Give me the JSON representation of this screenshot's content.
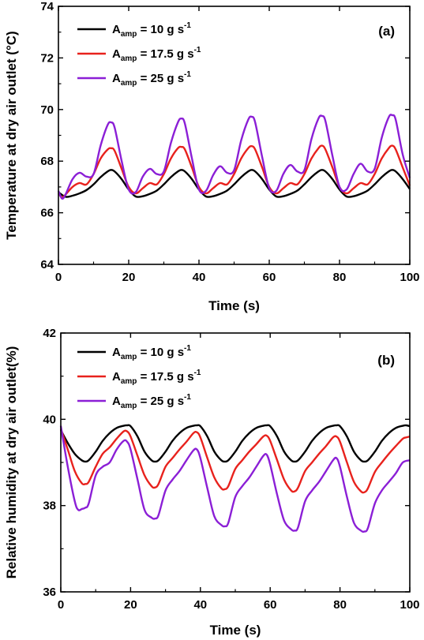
{
  "chart_data": [
    {
      "type": "line",
      "panel_label": "(a)",
      "xlabel": "Time (s)",
      "ylabel": "Temperature at dry air outlet (°C)",
      "xlim": [
        0,
        100
      ],
      "ylim": [
        64,
        74
      ],
      "xticks": [
        "0",
        "20",
        "40",
        "60",
        "80",
        "100"
      ],
      "yticks": [
        "64",
        "66",
        "68",
        "70",
        "72",
        "74"
      ],
      "grid": false,
      "legend_position": "top-left",
      "series": [
        {
          "name": "10 g s",
          "legend_prefix": "A",
          "legend_sub": "amp",
          "legend_eq": " = ",
          "legend_value": "10 g s",
          "legend_sup": "-1",
          "color": "#000000",
          "x": [
            0,
            2,
            4,
            6,
            8,
            10,
            12,
            14,
            15,
            16,
            18,
            20,
            22,
            24,
            26,
            28,
            30,
            32,
            34,
            35,
            36,
            38,
            40,
            42,
            44,
            46,
            48,
            50,
            52,
            54,
            55,
            56,
            58,
            60,
            62,
            64,
            66,
            68,
            70,
            72,
            74,
            75,
            76,
            78,
            80,
            82,
            84,
            86,
            88,
            90,
            92,
            94,
            95,
            96,
            98,
            100
          ],
          "y": [
            66.8,
            66.62,
            66.66,
            66.75,
            66.88,
            67.1,
            67.38,
            67.6,
            67.66,
            67.6,
            67.3,
            66.9,
            66.63,
            66.64,
            66.73,
            66.86,
            67.1,
            67.38,
            67.6,
            67.66,
            67.6,
            67.3,
            66.9,
            66.63,
            66.64,
            66.73,
            66.86,
            67.1,
            67.38,
            67.6,
            67.66,
            67.6,
            67.3,
            66.9,
            66.63,
            66.64,
            66.73,
            66.86,
            67.1,
            67.38,
            67.6,
            67.66,
            67.6,
            67.3,
            66.9,
            66.63,
            66.64,
            66.73,
            66.86,
            67.1,
            67.38,
            67.6,
            67.66,
            67.6,
            67.3,
            66.92
          ]
        },
        {
          "name": "17.5 g s",
          "legend_prefix": "A",
          "legend_sub": "amp",
          "legend_eq": " = ",
          "legend_value": "17.5 g s",
          "legend_sup": "-1",
          "color": "#e8221d",
          "x": [
            0,
            1,
            2,
            4,
            6,
            8,
            10,
            12,
            14,
            15,
            16,
            18,
            20,
            22,
            24,
            26,
            28,
            30,
            32,
            34,
            35,
            36,
            38,
            40,
            42,
            44,
            46,
            48,
            50,
            52,
            54,
            55,
            56,
            58,
            60,
            62,
            64,
            66,
            68,
            70,
            72,
            74,
            75,
            76,
            78,
            80,
            82,
            84,
            86,
            88,
            90,
            92,
            94,
            95,
            96,
            98,
            100
          ],
          "y": [
            66.75,
            66.6,
            66.7,
            67.0,
            67.15,
            67.1,
            67.5,
            68.1,
            68.45,
            68.5,
            68.4,
            67.7,
            67.0,
            66.75,
            66.95,
            67.15,
            67.1,
            67.5,
            68.1,
            68.5,
            68.55,
            68.45,
            67.75,
            67.0,
            66.75,
            66.95,
            67.15,
            67.1,
            67.5,
            68.1,
            68.5,
            68.58,
            68.45,
            67.75,
            67.0,
            66.75,
            66.95,
            67.15,
            67.1,
            67.5,
            68.1,
            68.5,
            68.6,
            68.45,
            67.75,
            67.0,
            66.75,
            66.95,
            67.15,
            67.1,
            67.5,
            68.1,
            68.5,
            68.6,
            68.45,
            67.75,
            67.05
          ]
        },
        {
          "name": "25 g s",
          "legend_prefix": "A",
          "legend_sub": "amp",
          "legend_eq": " = ",
          "legend_value": "25 g s",
          "legend_sup": "-1",
          "color": "#8b1fd6",
          "x": [
            0,
            1,
            2,
            4,
            6,
            8,
            10,
            12,
            14,
            15,
            16,
            18,
            20,
            22,
            24,
            26,
            28,
            30,
            32,
            34,
            35,
            36,
            38,
            40,
            42,
            44,
            46,
            48,
            50,
            52,
            54,
            55,
            56,
            58,
            60,
            62,
            64,
            66,
            68,
            70,
            72,
            74,
            75,
            76,
            78,
            80,
            82,
            84,
            86,
            88,
            90,
            92,
            94,
            95,
            96,
            98,
            100
          ],
          "y": [
            66.85,
            66.55,
            66.7,
            67.3,
            67.55,
            67.4,
            67.5,
            68.6,
            69.4,
            69.5,
            69.3,
            68.0,
            66.9,
            66.8,
            67.4,
            67.7,
            67.5,
            67.6,
            68.7,
            69.5,
            69.65,
            69.45,
            68.1,
            66.9,
            66.85,
            67.45,
            67.8,
            67.55,
            67.65,
            68.8,
            69.6,
            69.72,
            69.5,
            68.15,
            66.95,
            66.85,
            67.5,
            67.85,
            67.6,
            67.65,
            68.85,
            69.65,
            69.75,
            69.55,
            68.2,
            67.0,
            66.9,
            67.5,
            67.9,
            67.6,
            67.7,
            68.9,
            69.7,
            69.78,
            69.6,
            68.25,
            67.35
          ]
        }
      ]
    },
    {
      "type": "line",
      "panel_label": "(b)",
      "xlabel": "Time (s)",
      "ylabel": "Relative humidity at dry air outlet(%)",
      "xlim": [
        0,
        100
      ],
      "ylim": [
        36,
        42
      ],
      "xticks": [
        "0",
        "20",
        "40",
        "60",
        "80",
        "100"
      ],
      "yticks": [
        "36",
        "38",
        "40",
        "42"
      ],
      "grid": false,
      "legend_position": "top-left",
      "series": [
        {
          "name": "10 g s",
          "legend_prefix": "A",
          "legend_sub": "amp",
          "legend_eq": " = ",
          "legend_value": "10 g s",
          "legend_sup": "-1",
          "color": "#000000",
          "x": [
            0,
            2,
            4,
            6,
            7,
            8,
            10,
            12,
            14,
            16,
            18,
            19,
            20,
            22,
            24,
            26,
            27,
            28,
            30,
            32,
            34,
            36,
            38,
            39,
            40,
            42,
            44,
            46,
            47,
            48,
            50,
            52,
            54,
            56,
            58,
            59,
            60,
            62,
            64,
            66,
            67,
            68,
            70,
            72,
            74,
            76,
            78,
            79,
            80,
            82,
            84,
            86,
            87,
            88,
            90,
            92,
            94,
            96,
            98,
            99,
            100
          ],
          "y": [
            39.75,
            39.45,
            39.2,
            39.05,
            39.02,
            39.05,
            39.25,
            39.5,
            39.68,
            39.8,
            39.85,
            39.86,
            39.84,
            39.6,
            39.25,
            39.05,
            39.02,
            39.05,
            39.25,
            39.5,
            39.68,
            39.8,
            39.85,
            39.86,
            39.84,
            39.6,
            39.25,
            39.05,
            39.02,
            39.05,
            39.25,
            39.5,
            39.68,
            39.8,
            39.85,
            39.86,
            39.84,
            39.6,
            39.25,
            39.05,
            39.02,
            39.05,
            39.25,
            39.5,
            39.68,
            39.8,
            39.85,
            39.86,
            39.84,
            39.6,
            39.25,
            39.05,
            39.02,
            39.05,
            39.25,
            39.5,
            39.68,
            39.8,
            39.85,
            39.86,
            39.84
          ]
        },
        {
          "name": "17.5 g s",
          "legend_prefix": "A",
          "legend_sub": "amp",
          "legend_eq": " = ",
          "legend_value": "17.5 g s",
          "legend_sup": "-1",
          "color": "#e8221d",
          "x": [
            0,
            2,
            4,
            6,
            7,
            8,
            10,
            12,
            14,
            16,
            18,
            19,
            20,
            22,
            24,
            26,
            27,
            28,
            30,
            32,
            34,
            36,
            38,
            39,
            40,
            42,
            44,
            46,
            47,
            48,
            50,
            52,
            54,
            56,
            58,
            59,
            60,
            62,
            64,
            66,
            67,
            68,
            70,
            72,
            74,
            76,
            78,
            79,
            80,
            82,
            84,
            86,
            87,
            88,
            90,
            92,
            94,
            96,
            98,
            99,
            100
          ],
          "y": [
            39.78,
            39.3,
            38.8,
            38.52,
            38.5,
            38.55,
            38.9,
            39.2,
            39.35,
            39.55,
            39.72,
            39.72,
            39.6,
            39.15,
            38.7,
            38.45,
            38.42,
            38.5,
            38.9,
            39.1,
            39.3,
            39.48,
            39.68,
            39.7,
            39.58,
            39.1,
            38.65,
            38.4,
            38.38,
            38.45,
            38.85,
            39.05,
            39.25,
            39.42,
            39.6,
            39.62,
            39.5,
            39.05,
            38.6,
            38.35,
            38.33,
            38.42,
            38.8,
            39.0,
            39.2,
            39.38,
            39.58,
            39.6,
            39.48,
            39.0,
            38.55,
            38.33,
            38.31,
            38.4,
            38.78,
            39.0,
            39.2,
            39.38,
            39.55,
            39.58,
            39.6
          ]
        },
        {
          "name": "25 g s",
          "legend_prefix": "A",
          "legend_sub": "amp",
          "legend_eq": " = ",
          "legend_value": "25 g s",
          "legend_sup": "-1",
          "color": "#8b1fd6",
          "x": [
            0,
            2,
            4,
            5,
            6,
            7,
            8,
            10,
            12,
            14,
            16,
            18,
            19,
            20,
            22,
            24,
            26,
            27,
            28,
            30,
            32,
            34,
            36,
            38,
            39,
            40,
            42,
            44,
            46,
            47,
            48,
            50,
            52,
            54,
            56,
            58,
            59,
            60,
            62,
            64,
            66,
            67,
            68,
            70,
            72,
            74,
            76,
            78,
            79,
            80,
            82,
            84,
            86,
            87,
            88,
            90,
            92,
            94,
            96,
            98,
            100
          ],
          "y": [
            39.85,
            38.9,
            38.1,
            37.9,
            37.92,
            37.95,
            38.05,
            38.7,
            38.9,
            39.0,
            39.3,
            39.5,
            39.48,
            39.3,
            38.6,
            37.9,
            37.72,
            37.7,
            37.78,
            38.35,
            38.6,
            38.8,
            39.05,
            39.28,
            39.3,
            39.1,
            38.4,
            37.75,
            37.55,
            37.52,
            37.6,
            38.2,
            38.45,
            38.65,
            38.9,
            39.15,
            39.18,
            38.95,
            38.25,
            37.65,
            37.45,
            37.42,
            37.5,
            38.1,
            38.35,
            38.55,
            38.8,
            39.05,
            39.1,
            38.9,
            38.2,
            37.6,
            37.42,
            37.4,
            37.48,
            38.05,
            38.35,
            38.55,
            38.75,
            39.0,
            39.05
          ]
        }
      ]
    }
  ]
}
